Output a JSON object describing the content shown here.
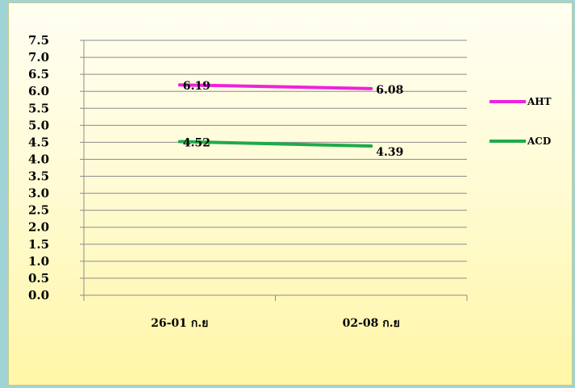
{
  "chart_data": {
    "type": "line",
    "categories": [
      "26-01 ก.ย",
      "02-08 ก.ย"
    ],
    "series": [
      {
        "name": "AHT",
        "values": [
          6.19,
          6.08
        ],
        "color": "#ee22dd"
      },
      {
        "name": "ACD",
        "values": [
          4.52,
          4.39
        ],
        "color": "#1faa4a"
      }
    ],
    "data_labels": [
      [
        "6.19",
        "6.08"
      ],
      [
        "4.52",
        "4.39"
      ]
    ],
    "ylim": [
      0,
      7.5
    ],
    "ytick_labels": [
      "0.0",
      "0.5",
      "1.0",
      "1.5",
      "2.0",
      "2.5",
      "3.0",
      "3.5",
      "4.0",
      "4.5",
      "5.0",
      "5.5",
      "6.0",
      "6.5",
      "7.0",
      "7.5"
    ],
    "grid": true,
    "legend_position": "right",
    "title": "",
    "xlabel": "",
    "ylabel": ""
  }
}
